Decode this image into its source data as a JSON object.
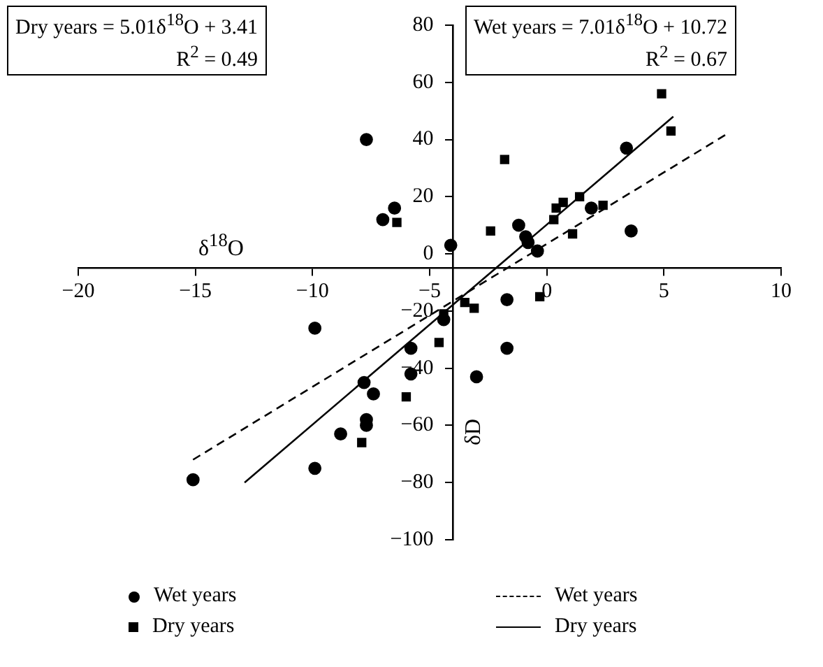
{
  "chart_data": {
    "type": "scatter",
    "xlabel": "δ$^{18}$O",
    "ylabel": "δD",
    "annotations": [
      "Dry years = 5.01δ$^{18}$O + 3.41\nR$^{2}$ = 0.49",
      "Wet years = 7.01δ$^{18}$O + 10.72\nR$^{2}$ = 0.67"
    ],
    "xlim": [
      -20,
      10
    ],
    "xticks": [
      -20,
      -15,
      -10,
      -5,
      0,
      5,
      10
    ],
    "ylim": [
      -100,
      80
    ],
    "yticks": [
      -100,
      -80,
      -60,
      -40,
      -20,
      0,
      20,
      40,
      60,
      80
    ],
    "grid": false,
    "legend": "bottom",
    "series": [
      {
        "name": "Wet years",
        "marker": "circle",
        "color": "#000000",
        "x": [
          -7.7,
          -7.0,
          -6.5,
          -4.1,
          3.4,
          1.9,
          -1.2,
          -0.9,
          -0.8,
          -0.4,
          3.6,
          -1.7,
          -9.9,
          -4.4,
          -5.8,
          -5.8,
          -7.8,
          -7.4,
          -7.7,
          -7.7,
          -8.8,
          -9.9,
          -15.1,
          -1.7,
          -3.0
        ],
        "values": [
          40,
          12,
          16,
          3,
          37,
          16,
          10,
          6,
          4,
          1,
          8,
          -16,
          -26,
          -23,
          -33,
          -42,
          -45,
          -49,
          -58,
          -60,
          -63,
          -75,
          -79,
          -33,
          -43
        ]
      },
      {
        "name": "Dry years",
        "marker": "square",
        "color": "#000000",
        "x": [
          -6.4,
          -2.4,
          4.9,
          5.3,
          -1.8,
          0.7,
          0.4,
          0.3,
          1.4,
          2.4,
          1.1,
          -0.3,
          -3.1,
          -3.5,
          -4.4,
          -4.6,
          -6.0,
          -7.9
        ],
        "values": [
          11,
          8,
          56,
          43,
          33,
          18,
          16,
          12,
          20,
          17,
          7,
          -15,
          -19,
          -17,
          -21,
          -31,
          -50,
          -66
        ]
      },
      {
        "name": "Wet years",
        "type": "line",
        "line_style": "dashed",
        "marker": "none",
        "color": "#000000",
        "x": [
          -15.1,
          7.7
        ],
        "values": [
          -72,
          42
        ]
      },
      {
        "name": "Dry years",
        "type": "line",
        "line_style": "solid",
        "marker": "none",
        "color": "#000000",
        "x": [
          -12.9,
          5.4
        ],
        "values": [
          -80,
          48
        ]
      }
    ]
  }
}
